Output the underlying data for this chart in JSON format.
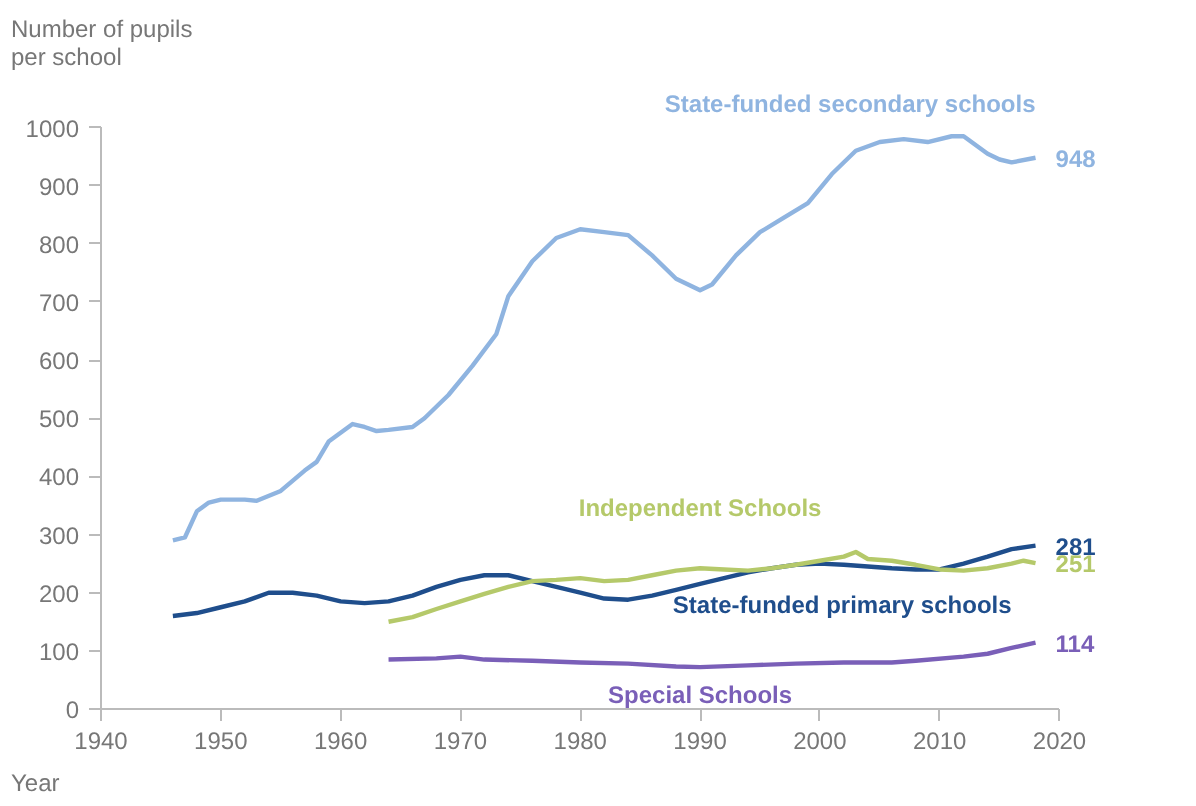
{
  "chart_data": {
    "type": "line",
    "xlabel": "Year",
    "ylabel": "Number of pupils per school",
    "xlim": [
      1940,
      2020
    ],
    "xticks": [
      1940,
      1950,
      1960,
      1970,
      1980,
      1990,
      2000,
      2010,
      2020
    ],
    "ylim": [
      0,
      1000
    ],
    "yticks": [
      0,
      100,
      200,
      300,
      400,
      500,
      600,
      700,
      800,
      900,
      1000
    ],
    "grid": false,
    "marker": "none",
    "line_style": "solid",
    "series": [
      {
        "name": "State-funded secondary schools",
        "color": "#8fb4e0",
        "x": [
          1946,
          1947,
          1948,
          1949,
          1950,
          1952,
          1953,
          1955,
          1957,
          1958,
          1959,
          1960,
          1961,
          1962,
          1963,
          1964,
          1966,
          1967,
          1969,
          1971,
          1973,
          1974,
          1976,
          1978,
          1980,
          1982,
          1984,
          1986,
          1988,
          1990,
          1991,
          1993,
          1995,
          1997,
          1999,
          2001,
          2003,
          2005,
          2007,
          2009,
          2011,
          2012,
          2014,
          2015,
          2016,
          2018
        ],
        "values": [
          290,
          295,
          340,
          355,
          360,
          360,
          358,
          375,
          410,
          425,
          460,
          475,
          490,
          485,
          478,
          480,
          485,
          500,
          540,
          590,
          645,
          710,
          770,
          810,
          825,
          820,
          815,
          780,
          740,
          720,
          730,
          780,
          820,
          845,
          870,
          920,
          960,
          975,
          980,
          975,
          985,
          985,
          955,
          945,
          940,
          948
        ],
        "value_labels": [
          null,
          null,
          null,
          null,
          null,
          null,
          null,
          null,
          null,
          null,
          null,
          null,
          null,
          null,
          null,
          null,
          null,
          null,
          null,
          null,
          null,
          null,
          null,
          null,
          null,
          null,
          null,
          null,
          null,
          null,
          null,
          null,
          null,
          null,
          null,
          null,
          null,
          null,
          null,
          null,
          null,
          null,
          null,
          null,
          null,
          "948"
        ]
      },
      {
        "name": "State-funded primary schools",
        "color": "#1f4e8c",
        "x": [
          1946,
          1948,
          1950,
          1952,
          1954,
          1956,
          1958,
          1960,
          1962,
          1964,
          1966,
          1968,
          1970,
          1972,
          1974,
          1976,
          1978,
          1980,
          1982,
          1984,
          1986,
          1988,
          1990,
          1992,
          1994,
          1996,
          1998,
          2000,
          2002,
          2004,
          2006,
          2008,
          2010,
          2012,
          2014,
          2016,
          2018
        ],
        "values": [
          160,
          165,
          175,
          185,
          200,
          200,
          195,
          185,
          182,
          185,
          195,
          210,
          222,
          230,
          230,
          220,
          210,
          200,
          190,
          188,
          195,
          205,
          215,
          225,
          235,
          242,
          248,
          250,
          248,
          245,
          242,
          240,
          240,
          250,
          262,
          275,
          281
        ],
        "value_labels": [
          null,
          null,
          null,
          null,
          null,
          null,
          null,
          null,
          null,
          null,
          null,
          null,
          null,
          null,
          null,
          null,
          null,
          null,
          null,
          null,
          null,
          null,
          null,
          null,
          null,
          null,
          null,
          null,
          null,
          null,
          null,
          null,
          null,
          null,
          null,
          null,
          "281"
        ]
      },
      {
        "name": "Independent Schools",
        "color": "#b5c96a",
        "x": [
          1964,
          1966,
          1968,
          1970,
          1972,
          1974,
          1976,
          1978,
          1980,
          1982,
          1984,
          1986,
          1988,
          1990,
          1992,
          1994,
          1996,
          1998,
          2000,
          2002,
          2003,
          2004,
          2006,
          2008,
          2010,
          2012,
          2014,
          2016,
          2017,
          2018
        ],
        "values": [
          150,
          158,
          172,
          185,
          198,
          210,
          220,
          222,
          225,
          220,
          222,
          230,
          238,
          242,
          240,
          238,
          242,
          248,
          255,
          262,
          270,
          258,
          255,
          248,
          240,
          238,
          242,
          250,
          255,
          251
        ],
        "value_labels": [
          null,
          null,
          null,
          null,
          null,
          null,
          null,
          null,
          null,
          null,
          null,
          null,
          null,
          null,
          null,
          null,
          null,
          null,
          null,
          null,
          null,
          null,
          null,
          null,
          null,
          null,
          null,
          null,
          null,
          "251"
        ]
      },
      {
        "name": "Special Schools",
        "color": "#7a5fb8",
        "x": [
          1964,
          1968,
          1970,
          1972,
          1976,
          1980,
          1984,
          1988,
          1990,
          1994,
          1998,
          2002,
          2006,
          2008,
          2012,
          2014,
          2016,
          2018
        ],
        "values": [
          85,
          87,
          90,
          85,
          83,
          80,
          78,
          73,
          72,
          75,
          78,
          80,
          80,
          83,
          90,
          95,
          105,
          114
        ],
        "value_labels": [
          null,
          null,
          null,
          null,
          null,
          null,
          null,
          null,
          null,
          null,
          null,
          null,
          null,
          null,
          null,
          null,
          null,
          "114"
        ]
      }
    ]
  }
}
